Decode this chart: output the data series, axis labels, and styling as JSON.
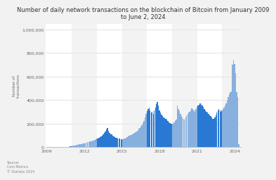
{
  "title": "Number of daily network transactions on the blockchain of Bitcoin from January 2009\nto June 2, 2024",
  "ylabel": "Number of\ntransactions",
  "bar_color": "#2979d4",
  "background_color": "#f2f2f2",
  "plot_bg_color": "#ffffff",
  "source_text": "Source:\nCoin Metrics\n© Statista 2024",
  "ylim": [
    0,
    1050000
  ],
  "yticks": [
    0,
    200000,
    400000,
    600000,
    800000,
    1000000
  ],
  "ytick_labels": [
    "0",
    "200,000",
    "400,000",
    "600,000",
    "800,000",
    "1,000,000"
  ],
  "monthly_values": [
    0,
    0,
    0,
    0,
    0,
    0,
    0,
    0,
    0,
    0,
    0,
    0,
    0,
    0,
    0,
    500,
    800,
    1200,
    1800,
    2500,
    3500,
    4500,
    5500,
    7000,
    8500,
    11000,
    13000,
    15000,
    17000,
    19000,
    21000,
    23000,
    25000,
    27000,
    29000,
    31000,
    33000,
    36000,
    39000,
    41000,
    44000,
    47000,
    49000,
    51000,
    54000,
    57000,
    62000,
    67000,
    72000,
    76000,
    81000,
    86000,
    91000,
    96000,
    112000,
    122000,
    132000,
    152000,
    162000,
    142000,
    122000,
    112000,
    107000,
    97000,
    92000,
    87000,
    82000,
    79000,
    76000,
    73000,
    71000,
    69000,
    66000,
    69000,
    73000,
    76000,
    81000,
    86000,
    91000,
    96000,
    101000,
    106000,
    111000,
    116000,
    122000,
    127000,
    132000,
    142000,
    155000,
    165000,
    175000,
    185000,
    205000,
    225000,
    255000,
    285000,
    305000,
    325000,
    335000,
    315000,
    295000,
    300000,
    285000,
    315000,
    335000,
    365000,
    385000,
    355000,
    315000,
    295000,
    275000,
    265000,
    255000,
    245000,
    238000,
    233000,
    223000,
    213000,
    207000,
    202000,
    197000,
    202000,
    212000,
    222000,
    232000,
    355000,
    325000,
    305000,
    282000,
    263000,
    252000,
    243000,
    233000,
    253000,
    273000,
    283000,
    293000,
    303000,
    313000,
    333000,
    323000,
    313000,
    303000,
    323000,
    343000,
    353000,
    363000,
    373000,
    363000,
    353000,
    343000,
    323000,
    313000,
    303000,
    293000,
    283000,
    273000,
    263000,
    253000,
    243000,
    238000,
    253000,
    273000,
    293000,
    313000,
    323000,
    313000,
    303000,
    315000,
    323000,
    335000,
    355000,
    375000,
    395000,
    425000,
    448000,
    465000,
    475000,
    700000,
    740000,
    710000,
    630000,
    465000,
    425000,
    28000,
    0,
    0
  ]
}
